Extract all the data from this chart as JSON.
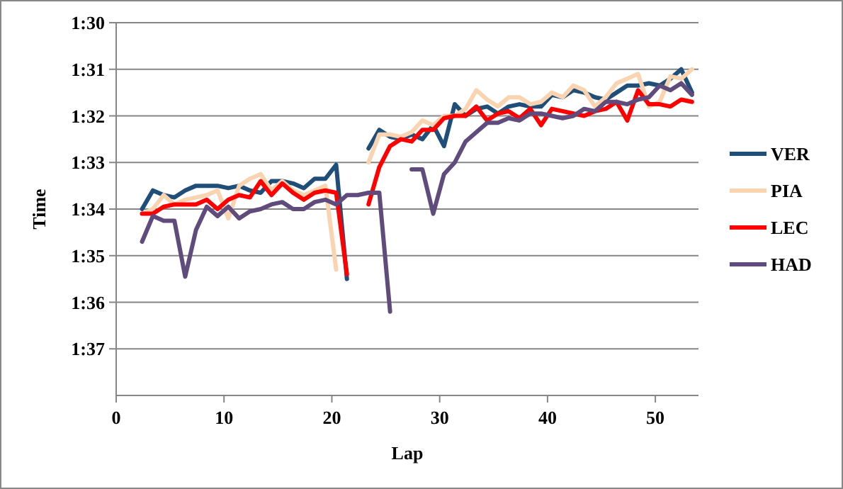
{
  "chart_data": {
    "type": "line",
    "xlabel": "Lap",
    "ylabel": "Time",
    "x": [
      2.4,
      3.4,
      4.4,
      5.4,
      6.4,
      7.4,
      8.4,
      9.4,
      10.4,
      11.4,
      12.4,
      13.4,
      14.4,
      15.4,
      16.4,
      17.4,
      18.4,
      19.4,
      20.4,
      21.4,
      22.4,
      23.4,
      24.4,
      25.4,
      26.4,
      27.4,
      28.4,
      29.4,
      30.4,
      31.4,
      32.4,
      33.4,
      34.4,
      35.4,
      36.4,
      37.4,
      38.4,
      39.4,
      40.4,
      41.4,
      42.4,
      43.4,
      44.4,
      45.4,
      46.4,
      47.4,
      48.4,
      49.4,
      50.4,
      51.4,
      52.4,
      53.4
    ],
    "series": [
      {
        "name": "VER",
        "color": "#1f4e79",
        "values": [
          94.0,
          93.6,
          93.7,
          93.75,
          93.6,
          93.5,
          93.5,
          93.5,
          93.55,
          93.5,
          93.6,
          93.65,
          93.4,
          93.4,
          93.45,
          93.55,
          93.35,
          93.35,
          93.05,
          95.5,
          null,
          92.7,
          92.3,
          92.45,
          92.5,
          92.4,
          92.5,
          92.2,
          92.65,
          91.75,
          92.0,
          91.85,
          91.8,
          91.95,
          91.8,
          91.75,
          91.8,
          91.8,
          91.55,
          91.6,
          91.45,
          91.5,
          91.6,
          91.65,
          91.5,
          91.35,
          91.35,
          91.3,
          91.35,
          91.2,
          91.0,
          91.5
        ]
      },
      {
        "name": "PIA",
        "color": "#fad4b0",
        "values": [
          94.1,
          94.0,
          93.7,
          93.9,
          93.8,
          93.75,
          93.7,
          93.6,
          94.2,
          93.5,
          93.35,
          93.25,
          93.6,
          93.4,
          93.6,
          93.7,
          93.6,
          93.5,
          95.3,
          null,
          null,
          93.0,
          92.4,
          92.4,
          92.45,
          92.35,
          92.1,
          92.2,
          92.0,
          92.0,
          91.85,
          91.45,
          91.65,
          91.8,
          91.6,
          91.6,
          91.75,
          91.7,
          91.5,
          91.6,
          91.35,
          91.45,
          91.8,
          91.6,
          91.3,
          91.2,
          91.1,
          91.8,
          91.7,
          91.15,
          91.2,
          91.0
        ]
      },
      {
        "name": "LEC",
        "color": "#ff0000",
        "values": [
          94.1,
          94.1,
          93.95,
          93.9,
          93.9,
          93.9,
          93.8,
          94.0,
          93.8,
          93.7,
          93.75,
          93.4,
          93.7,
          93.45,
          93.65,
          93.8,
          93.65,
          93.6,
          93.65,
          95.4,
          null,
          93.9,
          93.1,
          92.65,
          92.5,
          92.55,
          92.3,
          92.3,
          92.05,
          92.0,
          92.0,
          91.8,
          92.1,
          91.95,
          91.9,
          92.05,
          91.85,
          92.2,
          91.85,
          91.9,
          91.95,
          92.0,
          91.9,
          91.85,
          91.7,
          92.1,
          91.45,
          91.75,
          91.75,
          91.8,
          91.65,
          91.7
        ]
      },
      {
        "name": "HAD",
        "color": "#5f4b7c",
        "values": [
          94.7,
          94.15,
          94.25,
          94.25,
          95.45,
          94.45,
          93.95,
          94.15,
          93.95,
          94.2,
          94.05,
          94.0,
          93.9,
          93.85,
          94.0,
          94.0,
          93.85,
          93.8,
          93.9,
          93.7,
          93.7,
          93.65,
          93.65,
          96.2,
          null,
          93.15,
          93.15,
          94.1,
          93.25,
          93.0,
          92.55,
          92.35,
          92.15,
          92.15,
          92.05,
          92.1,
          91.95,
          91.95,
          92.0,
          92.05,
          92.0,
          91.85,
          91.9,
          91.7,
          91.7,
          91.75,
          91.65,
          91.6,
          91.35,
          91.45,
          91.3,
          91.55
        ]
      }
    ],
    "xlim": [
      0,
      54
    ],
    "xticks": [
      0,
      10,
      20,
      30,
      40,
      50
    ],
    "ylim": [
      98,
      90
    ],
    "yticks": [
      {
        "value": 90,
        "label": "1:30"
      },
      {
        "value": 91,
        "label": "1:31"
      },
      {
        "value": 92,
        "label": "1:32"
      },
      {
        "value": 93,
        "label": "1:33"
      },
      {
        "value": 94,
        "label": "1:34"
      },
      {
        "value": 95,
        "label": "1:35"
      },
      {
        "value": 96,
        "label": "1:36"
      },
      {
        "value": 97,
        "label": "1:37"
      }
    ],
    "grid": "y",
    "legend": "right",
    "marker": "none",
    "line_style": "solid"
  }
}
